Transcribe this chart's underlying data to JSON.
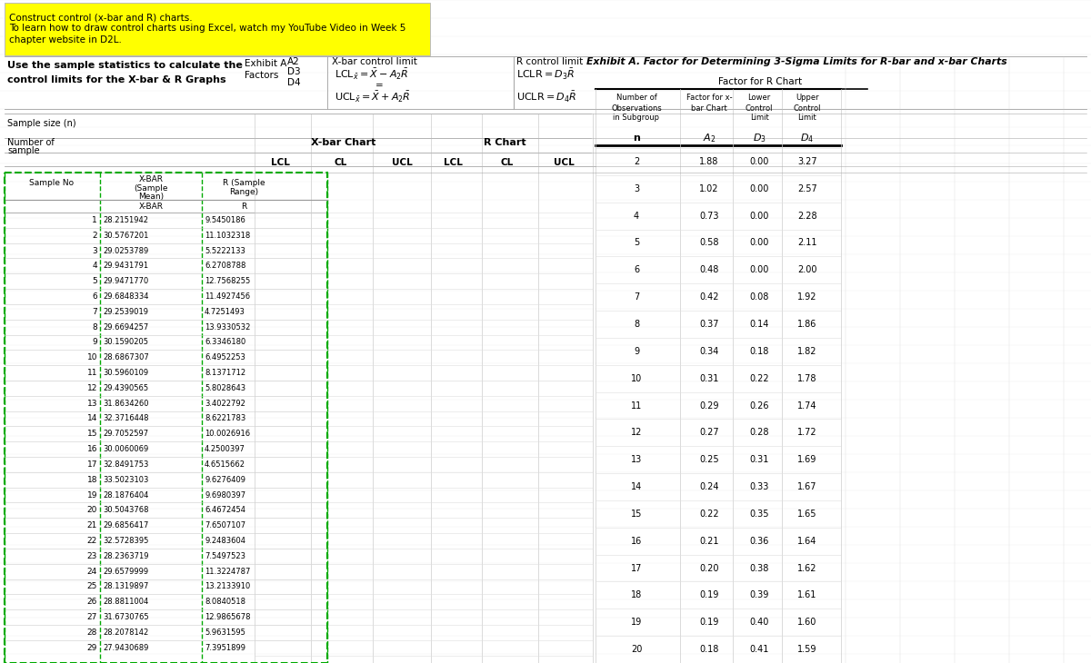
{
  "yellow_text": [
    "Construct control (x-bar and R) charts.",
    "To learn how to draw control charts using Excel, watch my YouTube Video in Week 5",
    "chapter website in D2L."
  ],
  "bold_line1": "Use the sample statistics to calculate the",
  "bold_line2": "control limits for the X-bar & R Graphs",
  "exhibit_a_title": "Exhibit A. Factor for Determining 3-Sigma Limits for R-bar and x-bar Charts",
  "exhibit_data_n": [
    2,
    3,
    4,
    5,
    6,
    7,
    8,
    9,
    10,
    11,
    12,
    13,
    14,
    15,
    16,
    17,
    18,
    19,
    20
  ],
  "exhibit_data_A2": [
    1.88,
    1.02,
    0.73,
    0.58,
    0.48,
    0.42,
    0.37,
    0.34,
    0.31,
    0.29,
    0.27,
    0.25,
    0.24,
    0.22,
    0.21,
    0.2,
    0.19,
    0.19,
    0.18
  ],
  "exhibit_data_D3": [
    0.0,
    0.0,
    0.0,
    0.0,
    0.0,
    0.08,
    0.14,
    0.18,
    0.22,
    0.26,
    0.28,
    0.31,
    0.33,
    0.35,
    0.36,
    0.38,
    0.39,
    0.4,
    0.41
  ],
  "exhibit_data_D4": [
    3.27,
    2.57,
    2.28,
    2.11,
    2.0,
    1.92,
    1.86,
    1.82,
    1.78,
    1.74,
    1.72,
    1.69,
    1.67,
    1.65,
    1.64,
    1.62,
    1.61,
    1.6,
    1.59
  ],
  "sample_data": [
    [
      1,
      28.2151942,
      9.5450186
    ],
    [
      2,
      30.5767201,
      11.1032318
    ],
    [
      3,
      29.0253789,
      5.52221327
    ],
    [
      4,
      29.9431791,
      6.27087883
    ],
    [
      5,
      29.947177,
      12.7568255
    ],
    [
      6,
      29.6848334,
      11.4927456
    ],
    [
      7,
      29.2539019,
      4.72514932
    ],
    [
      8,
      29.6694257,
      13.9330532
    ],
    [
      9,
      30.1590205,
      6.33461804
    ],
    [
      10,
      28.6867307,
      6.49522527
    ],
    [
      11,
      30.5960109,
      8.13717125
    ],
    [
      12,
      29.4390565,
      5.80286433
    ],
    [
      13,
      31.863426,
      3.40227918
    ],
    [
      14,
      32.3716448,
      8.62217828
    ],
    [
      15,
      29.7052597,
      10.0026916
    ],
    [
      16,
      30.0060069,
      4.25003967
    ],
    [
      17,
      32.8491753,
      4.6515662
    ],
    [
      18,
      33.5023103,
      9.62764088
    ],
    [
      19,
      28.1876404,
      9.6980397
    ],
    [
      20,
      30.5043768,
      6.46724539
    ],
    [
      21,
      29.6856417,
      7.65071069
    ],
    [
      22,
      32.5728395,
      9.2483604
    ],
    [
      23,
      28.2363719,
      7.54975234
    ],
    [
      24,
      29.6579999,
      11.3224787
    ],
    [
      25,
      28.1319897,
      13.213391
    ],
    [
      26,
      28.8811004,
      8.08405181
    ],
    [
      27,
      31.6730765,
      12.9865678
    ],
    [
      28,
      28.2078142,
      5.96315947
    ],
    [
      29,
      27.9430689,
      7.39518992
    ]
  ],
  "yellow_color": "#ffff00",
  "green_color": "#00aa00",
  "white": "#ffffff"
}
